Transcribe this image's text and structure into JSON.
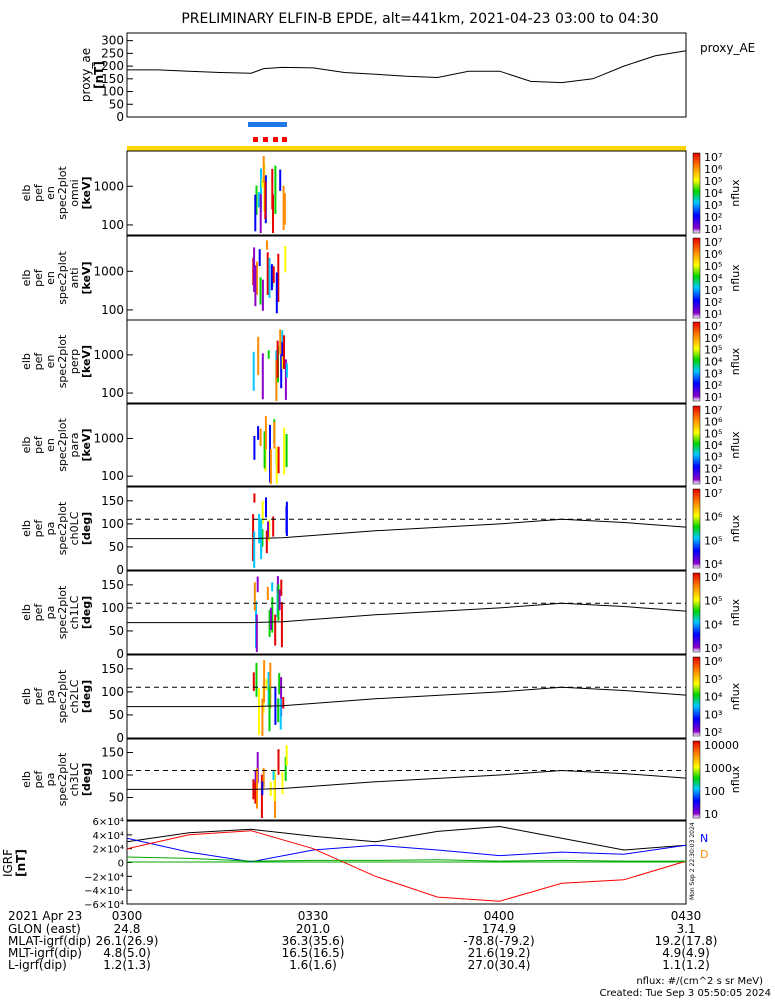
{
  "title": "PRELIMINARY ELFIN-B EPDE, alt=441km, 2021-04-23 03:00 to 04:30",
  "colors": {
    "frame": "#000000",
    "blue_bar": "#1e78e6",
    "red_dash": "#ff0000",
    "yellow_bar": "#ffd700",
    "igrf_x": "#000000",
    "igrf_y": "#0000ff",
    "igrf_z": "#ff0000",
    "igrf_green": "#00aa00"
  },
  "panels": [
    {
      "ylabel": [
        "proxy_ae",
        "[nT]"
      ],
      "right_label": "proxy_AE",
      "ticks": [
        "300",
        "250",
        "200",
        "150",
        "100",
        "50",
        "0"
      ]
    },
    {
      "ylabel": [
        "elb",
        "pef",
        "en",
        "spec2plot",
        "omni",
        "[keV]"
      ],
      "ticks": [
        "1000",
        "100"
      ],
      "cb_ticks": [
        "10⁷",
        "10⁶",
        "10⁵",
        "10⁴",
        "10³",
        "10²",
        "10¹"
      ],
      "cb_label": "nflux"
    },
    {
      "ylabel": [
        "elb",
        "pef",
        "en",
        "spec2plot",
        "anti",
        "[keV]"
      ],
      "ticks": [
        "1000",
        "100"
      ],
      "cb_ticks": [
        "10⁷",
        "10⁶",
        "10⁵",
        "10⁴",
        "10³",
        "10²",
        "10¹"
      ],
      "cb_label": "nflux"
    },
    {
      "ylabel": [
        "elb",
        "pef",
        "en",
        "spec2plot",
        "perp",
        "[keV]"
      ],
      "ticks": [
        "1000",
        "100"
      ],
      "cb_ticks": [
        "10⁷",
        "10⁶",
        "10⁵",
        "10⁴",
        "10³",
        "10²",
        "10¹"
      ],
      "cb_label": "nflux"
    },
    {
      "ylabel": [
        "elb",
        "pef",
        "en",
        "spec2plot",
        "para",
        "[keV]"
      ],
      "ticks": [
        "1000",
        "100"
      ],
      "cb_ticks": [
        "10⁷",
        "10⁶",
        "10⁵",
        "10⁴",
        "10³",
        "10²",
        "10¹"
      ],
      "cb_label": "nflux"
    },
    {
      "ylabel": [
        "elb",
        "pef",
        "pa",
        "spec2plot",
        "ch0LC",
        "[deg]"
      ],
      "ticks": [
        "150",
        "100",
        "50",
        "0"
      ],
      "cb_ticks": [
        "10⁷",
        "10⁶",
        "10⁵",
        "10⁴"
      ],
      "cb_label": "nflux"
    },
    {
      "ylabel": [
        "elb",
        "pef",
        "pa",
        "spec2plot",
        "ch1LC",
        "[deg]"
      ],
      "ticks": [
        "150",
        "100",
        "50",
        "0"
      ],
      "cb_ticks": [
        "10⁶",
        "10⁵",
        "10⁴",
        "10³"
      ],
      "cb_label": "nflux"
    },
    {
      "ylabel": [
        "elb",
        "pef",
        "pa",
        "spec2plot",
        "ch2LC",
        "[deg]"
      ],
      "ticks": [
        "150",
        "100",
        "50",
        "0"
      ],
      "cb_ticks": [
        "10⁶",
        "10⁵",
        "10⁴",
        "10³",
        "10²"
      ],
      "cb_label": "nflux"
    },
    {
      "ylabel": [
        "elb",
        "pef",
        "pa",
        "spec2plot",
        "ch3LC",
        "[deg]"
      ],
      "ticks": [
        "150",
        "100",
        "50"
      ],
      "cb_ticks": [
        "10000",
        "1000",
        "100",
        "10"
      ],
      "cb_label": "nflux"
    },
    {
      "ylabel": [
        "IGRF",
        "[nT]"
      ],
      "ticks": [
        "6×10⁴",
        "4×10⁴",
        "2×10⁴",
        "0",
        "−2×10⁴",
        "−4×10⁴",
        "−6×10⁴"
      ],
      "right_letters": [
        "N",
        "D"
      ]
    }
  ],
  "chart_data": {
    "type": "line",
    "proxy_ae": {
      "x": [
        "03:00",
        "03:05",
        "03:10",
        "03:15",
        "03:20",
        "03:22",
        "03:25",
        "03:30",
        "03:35",
        "03:40",
        "03:45",
        "03:50",
        "03:55",
        "04:00",
        "04:05",
        "04:10",
        "04:15",
        "04:20",
        "04:25",
        "04:30"
      ],
      "y": [
        185,
        185,
        180,
        175,
        172,
        190,
        195,
        193,
        175,
        168,
        160,
        155,
        180,
        180,
        140,
        135,
        150,
        200,
        240,
        260
      ],
      "ylim": [
        0,
        300
      ]
    },
    "igrf": {
      "x": [
        "03:00",
        "03:10",
        "03:20",
        "03:30",
        "03:40",
        "03:50",
        "04:00",
        "04:10",
        "04:20",
        "04:30"
      ],
      "black": [
        30000,
        43000,
        48000,
        38000,
        30000,
        45000,
        52000,
        35000,
        18000,
        25000
      ],
      "blue": [
        35000,
        15000,
        1000,
        18000,
        25000,
        18000,
        10000,
        15000,
        12000,
        25000
      ],
      "red": [
        20000,
        40000,
        46000,
        20000,
        -20000,
        -50000,
        -56000,
        -30000,
        -25000,
        2000
      ],
      "green": [
        8000,
        6000,
        2000,
        3000,
        3000,
        4000,
        2000,
        3000,
        2000,
        2000
      ],
      "ylim": [
        -60000,
        60000
      ]
    },
    "pitch_angle_dashed_deg": 110,
    "pitch_angle_solid_deg": {
      "x": [
        "03:00",
        "03:20",
        "03:25",
        "03:40",
        "04:00",
        "04:10",
        "04:20",
        "04:30"
      ],
      "y": [
        68,
        68,
        70,
        85,
        100,
        110,
        103,
        93
      ]
    }
  },
  "x_axis": {
    "date_label": "2021 Apr 23",
    "ticks": [
      "0300",
      "0330",
      "0400",
      "0430"
    ]
  },
  "ephemeris": [
    {
      "label": "GLON (east)",
      "values": [
        "24.8",
        "201.0",
        "174.9",
        "3.1"
      ]
    },
    {
      "label": "MLAT-igrf(dip)",
      "values": [
        "26.1(26.9)",
        "36.3(35.6)",
        "-78.8(-79.2)",
        "19.2(17.8)"
      ]
    },
    {
      "label": "MLT-igrf(dip)",
      "values": [
        "4.8(5.0)",
        "16.5(16.5)",
        "21.6(19.2)",
        "4.9(4.9)"
      ]
    },
    {
      "label": "L-igrf(dip)",
      "values": [
        "1.2(1.3)",
        "1.6(1.6)",
        "27.0(30.4)",
        "1.1(1.2)"
      ]
    }
  ],
  "footer": {
    "units": "nflux: #/(cm^2 s sr MeV)",
    "created": "Created: Tue Sep  3 05:50:05 2024",
    "side_text": "Mon Sep  2 22:30:03 2024"
  }
}
